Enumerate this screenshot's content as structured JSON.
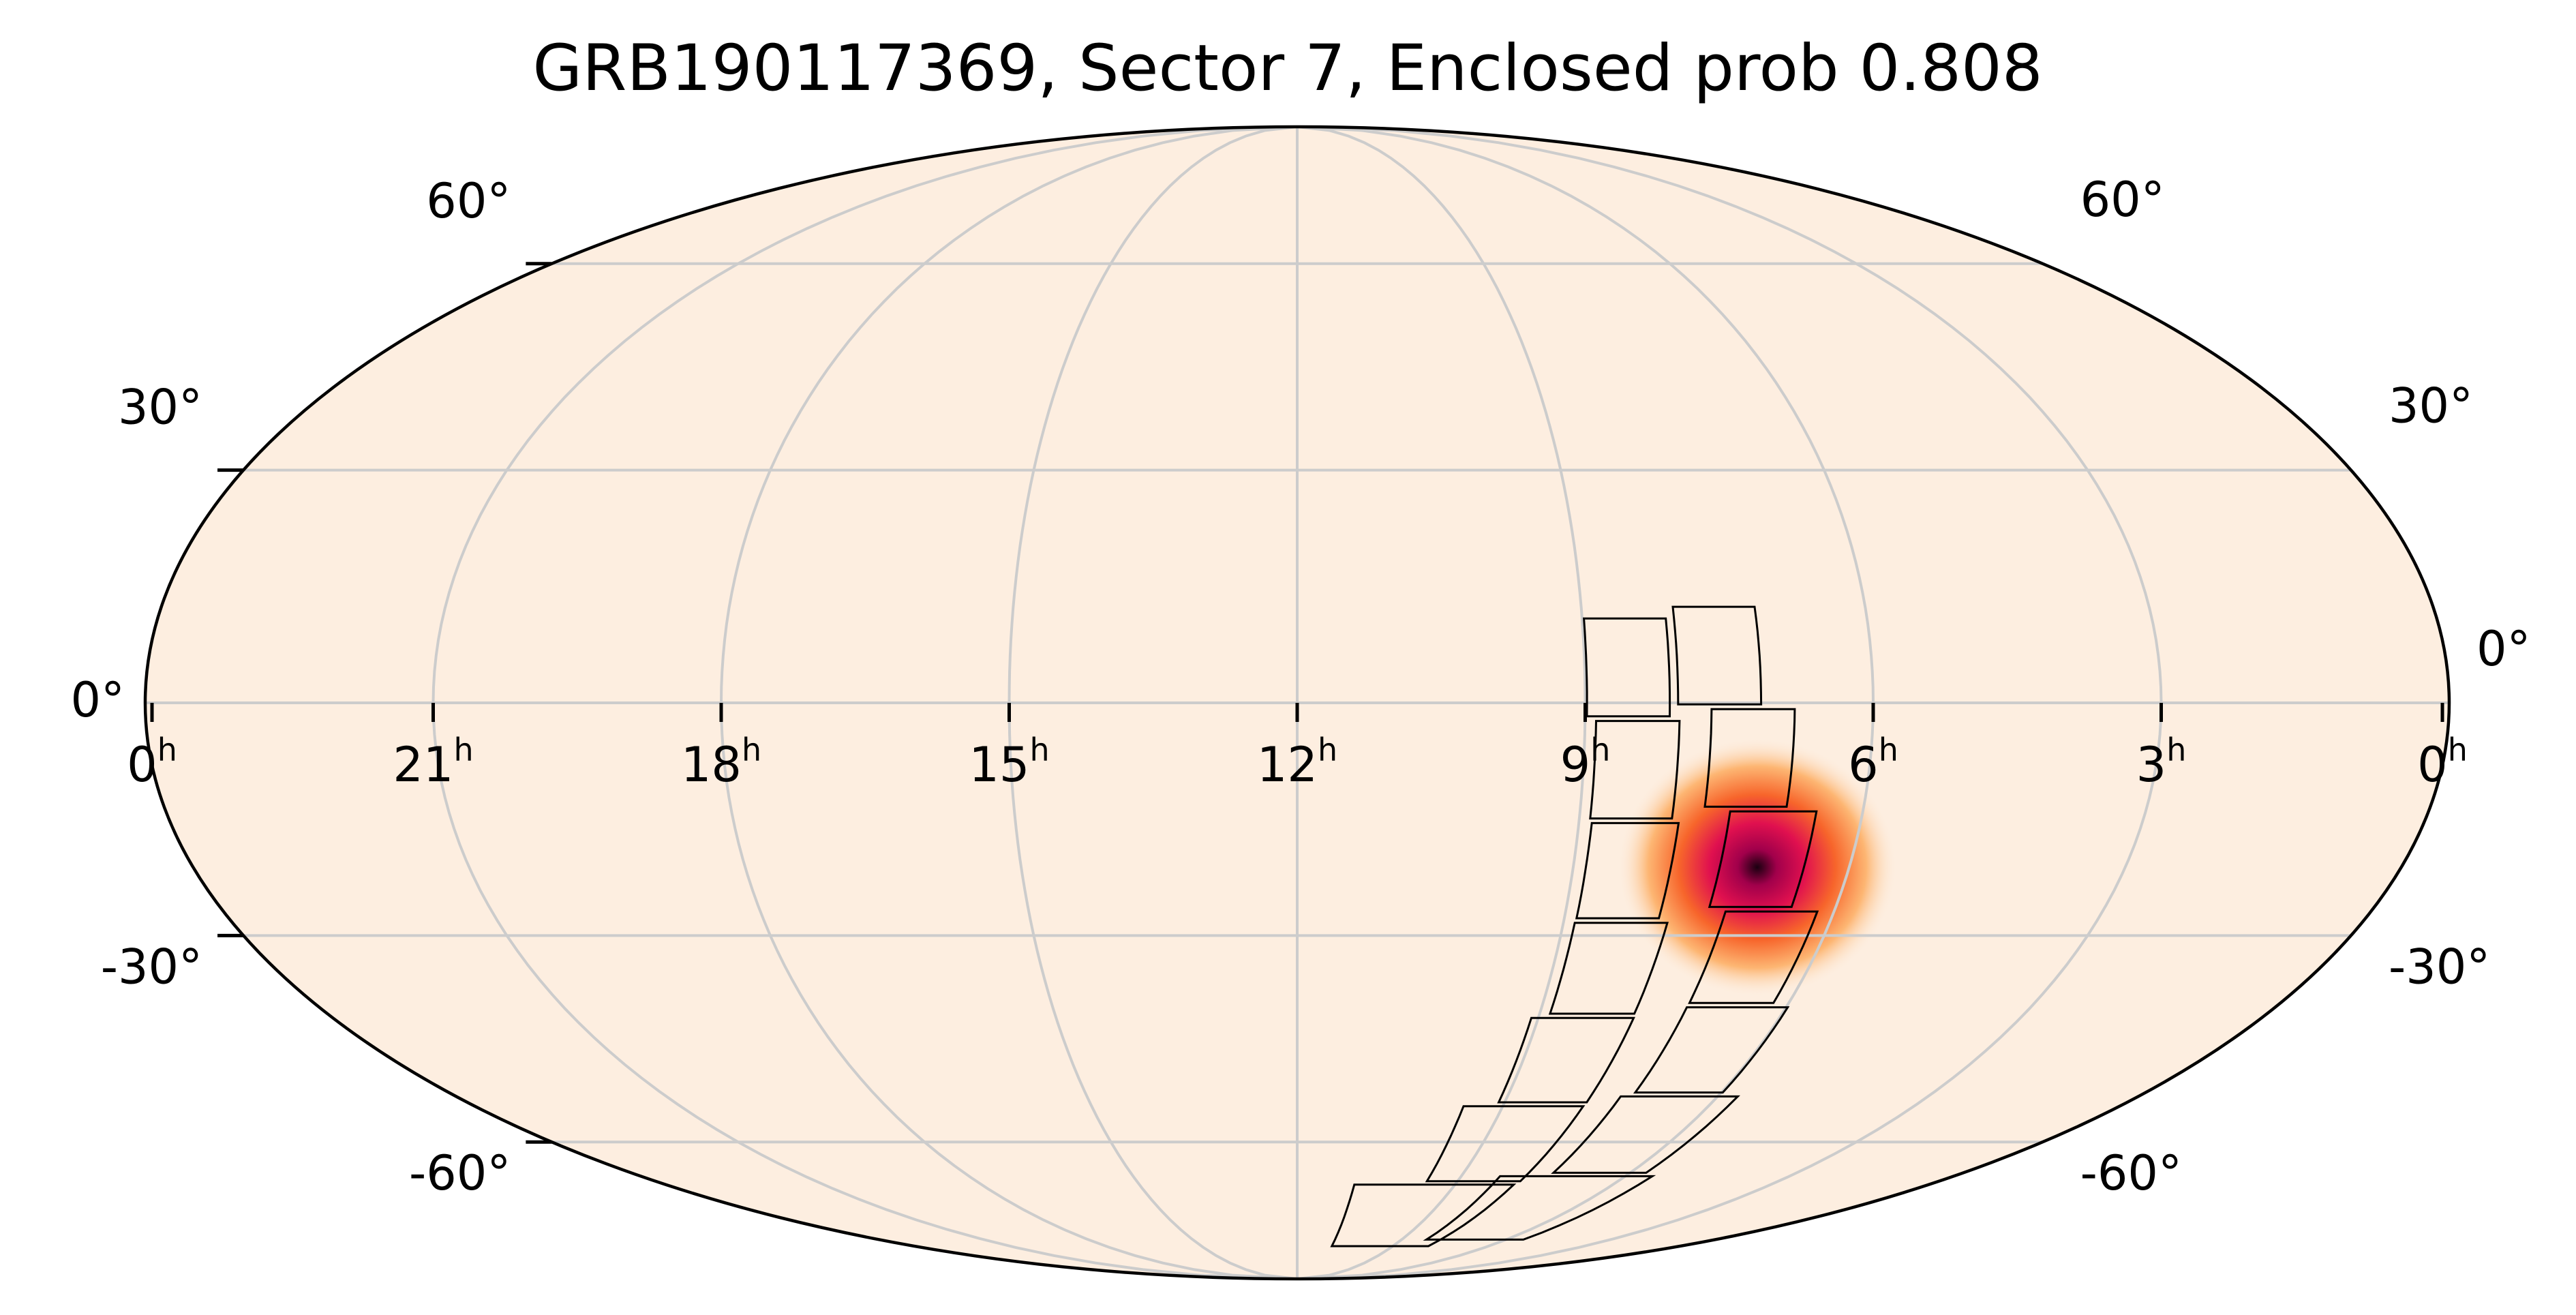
{
  "map": {
    "title": "GRB190117369, Sector 7, Enclosed prob 0.808",
    "projection": "mollweide",
    "background_color": "#fdeee0",
    "grid_color": "#cccccc",
    "ra_ticks": [
      {
        "ra_hours": 24,
        "num": "0",
        "unit": "h"
      },
      {
        "ra_hours": 21,
        "num": "21",
        "unit": "h"
      },
      {
        "ra_hours": 18,
        "num": "18",
        "unit": "h"
      },
      {
        "ra_hours": 15,
        "num": "15",
        "unit": "h"
      },
      {
        "ra_hours": 12,
        "num": "12",
        "unit": "h"
      },
      {
        "ra_hours": 9,
        "num": "9",
        "unit": "h"
      },
      {
        "ra_hours": 6,
        "num": "6",
        "unit": "h"
      },
      {
        "ra_hours": 3,
        "num": "3",
        "unit": "h"
      },
      {
        "ra_hours": 0,
        "num": "0",
        "unit": "h"
      }
    ],
    "dec_ticks_left": [
      {
        "dec": 60,
        "label": "60°"
      },
      {
        "dec": 30,
        "label": "30°"
      },
      {
        "dec": 0,
        "label": "0°"
      },
      {
        "dec": -30,
        "label": "-30°"
      },
      {
        "dec": -60,
        "label": "-60°"
      }
    ],
    "dec_ticks_right": [
      {
        "dec": 60,
        "label": "60°"
      },
      {
        "dec": 30,
        "label": "30°"
      },
      {
        "dec": 0,
        "label": "0°"
      },
      {
        "dec": -30,
        "label": "-30°"
      },
      {
        "dec": -60,
        "label": "-60°"
      }
    ],
    "probability_peak": {
      "ra_hours": 7.0,
      "dec": -21.0
    },
    "probability_colors": [
      "#fdeee0",
      "#fdb673",
      "#f7652b",
      "#e0104f",
      "#a1004b",
      "#1a0010"
    ],
    "camera_footprints": {
      "strip_a": {
        "outline_color": "#000000",
        "cells": [
          {
            "ra_hours": 8.55,
            "dec": 4.5
          },
          {
            "ra_hours": 8.45,
            "dec": -8.5
          },
          {
            "ra_hours": 8.4,
            "dec": -21.5
          },
          {
            "ra_hours": 8.35,
            "dec": -34.5
          },
          {
            "ra_hours": 8.45,
            "dec": -47.5
          },
          {
            "ra_hours": 8.7,
            "dec": -60.5
          },
          {
            "ra_hours": 9.4,
            "dec": -73.5
          }
        ]
      },
      "strip_b": {
        "outline_color": "#000000",
        "cells": [
          {
            "ra_hours": 7.6,
            "dec": 6.0
          },
          {
            "ra_hours": 7.25,
            "dec": -7.0
          },
          {
            "ra_hours": 6.95,
            "dec": -20.0
          },
          {
            "ra_hours": 6.7,
            "dec": -33.0
          },
          {
            "ra_hours": 6.6,
            "dec": -46.0
          },
          {
            "ra_hours": 6.55,
            "dec": -59.0
          },
          {
            "ra_hours": 6.9,
            "dec": -72.0
          }
        ]
      }
    }
  }
}
